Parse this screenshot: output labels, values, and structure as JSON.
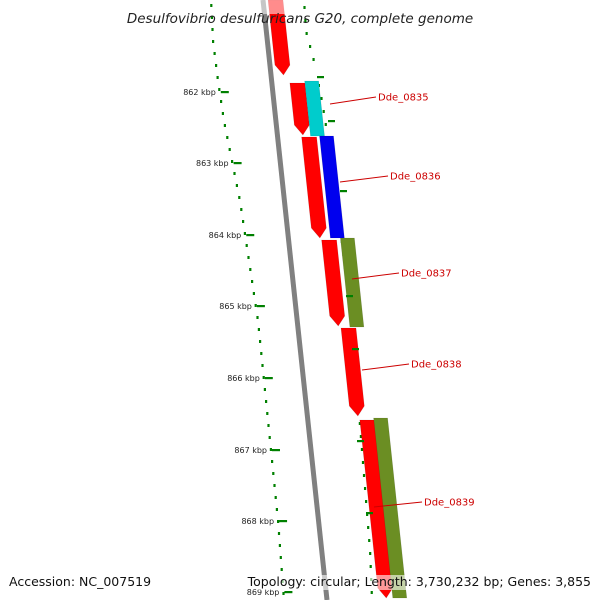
{
  "title": "Desulfovibrio desulfuricans G20, complete genome",
  "footer": {
    "accession": "Accession: NC_007519",
    "summary": "Topology: circular; Length: 3,730,232 bp; Genes: 3,855"
  },
  "ticks": [
    {
      "label": "862 kbp"
    },
    {
      "label": "863 kbp"
    },
    {
      "label": "864 kbp"
    },
    {
      "label": "865 kbp"
    },
    {
      "label": "866 kbp"
    },
    {
      "label": "867 kbp"
    },
    {
      "label": "868 kbp"
    },
    {
      "label": "869 kbp"
    }
  ],
  "genes": [
    {
      "label": "Dde_0835",
      "color": "#00cccc"
    },
    {
      "label": "Dde_0836",
      "color": "#0000ee"
    },
    {
      "label": "Dde_0837",
      "color": "#6b8e23"
    },
    {
      "label": "Dde_0838",
      "color": ""
    },
    {
      "label": "Dde_0839",
      "color": "#6b8e23"
    }
  ],
  "colors": {
    "backbone": "#808080",
    "forward_genes": "#ff0000",
    "tick_marks": "#008000",
    "label_text": "#cc0000"
  }
}
